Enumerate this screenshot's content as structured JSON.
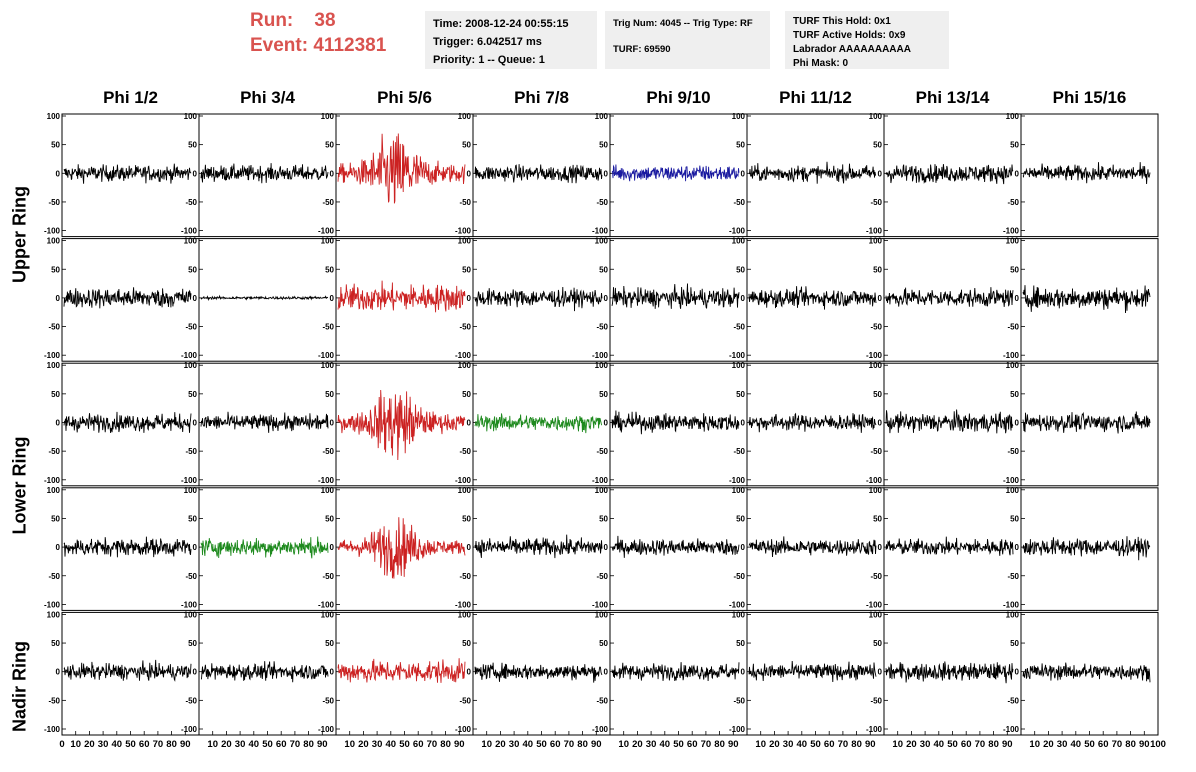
{
  "header": {
    "run_label": "Run:",
    "run_value": "38",
    "event_label": "Event:",
    "event_value": "4112381"
  },
  "info_time": {
    "time": "Time: 2008-12-24 00:55:15",
    "trigger": "Trigger: 6.042517 ms",
    "priority": "Priority: 1 -- Queue: 1"
  },
  "info_trig": {
    "trig": "Trig Num: 4045 -- Trig Type: RF",
    "turf": "TURF: 69590"
  },
  "info_turf": {
    "hold": "TURF This Hold: 0x1",
    "active": "TURF Active Holds: 0x9",
    "labrador": "Labrador AAAAAAAAAA",
    "phimask": "Phi Mask: 0"
  },
  "columns": [
    "Phi 1/2",
    "Phi 3/4",
    "Phi 5/6",
    "Phi 7/8",
    "Phi 9/10",
    "Phi 11/12",
    "Phi 13/14",
    "Phi 15/16"
  ],
  "rows": [
    "Upper Ring",
    "Lower Ring",
    "Nadir Ring"
  ],
  "chart_data": {
    "type": "line",
    "grid_rows": 5,
    "grid_cols": 8,
    "ylim": [
      -100,
      100
    ],
    "yticks": [
      "100",
      "50",
      "0",
      "-50",
      "-100"
    ],
    "xticks": [
      "0",
      "10",
      "20",
      "30",
      "40",
      "50",
      "60",
      "70",
      "80",
      "90",
      "100"
    ],
    "colors": {
      "default": "#000000",
      "red": "#cc2222",
      "blue": "#1a1aa0",
      "green": "#1e8a1e"
    },
    "panel_colors": [
      [
        "default",
        "default",
        "red",
        "default",
        "blue",
        "default",
        "default",
        "default"
      ],
      [
        "default",
        "default",
        "red",
        "default",
        "default",
        "default",
        "default",
        "default"
      ],
      [
        "default",
        "default",
        "red",
        "green",
        "default",
        "default",
        "default",
        "default"
      ],
      [
        "default",
        "green",
        "red",
        "default",
        "default",
        "default",
        "default",
        "default"
      ],
      [
        "default",
        "default",
        "red",
        "default",
        "default",
        "default",
        "default",
        "default"
      ]
    ],
    "panel_amplitudes": [
      [
        18,
        18,
        60,
        18,
        18,
        18,
        20,
        18
      ],
      [
        22,
        3,
        30,
        20,
        22,
        20,
        20,
        25
      ],
      [
        20,
        18,
        55,
        18,
        20,
        18,
        22,
        20
      ],
      [
        20,
        20,
        45,
        20,
        18,
        18,
        18,
        20
      ],
      [
        18,
        18,
        25,
        18,
        18,
        18,
        20,
        18
      ]
    ]
  }
}
